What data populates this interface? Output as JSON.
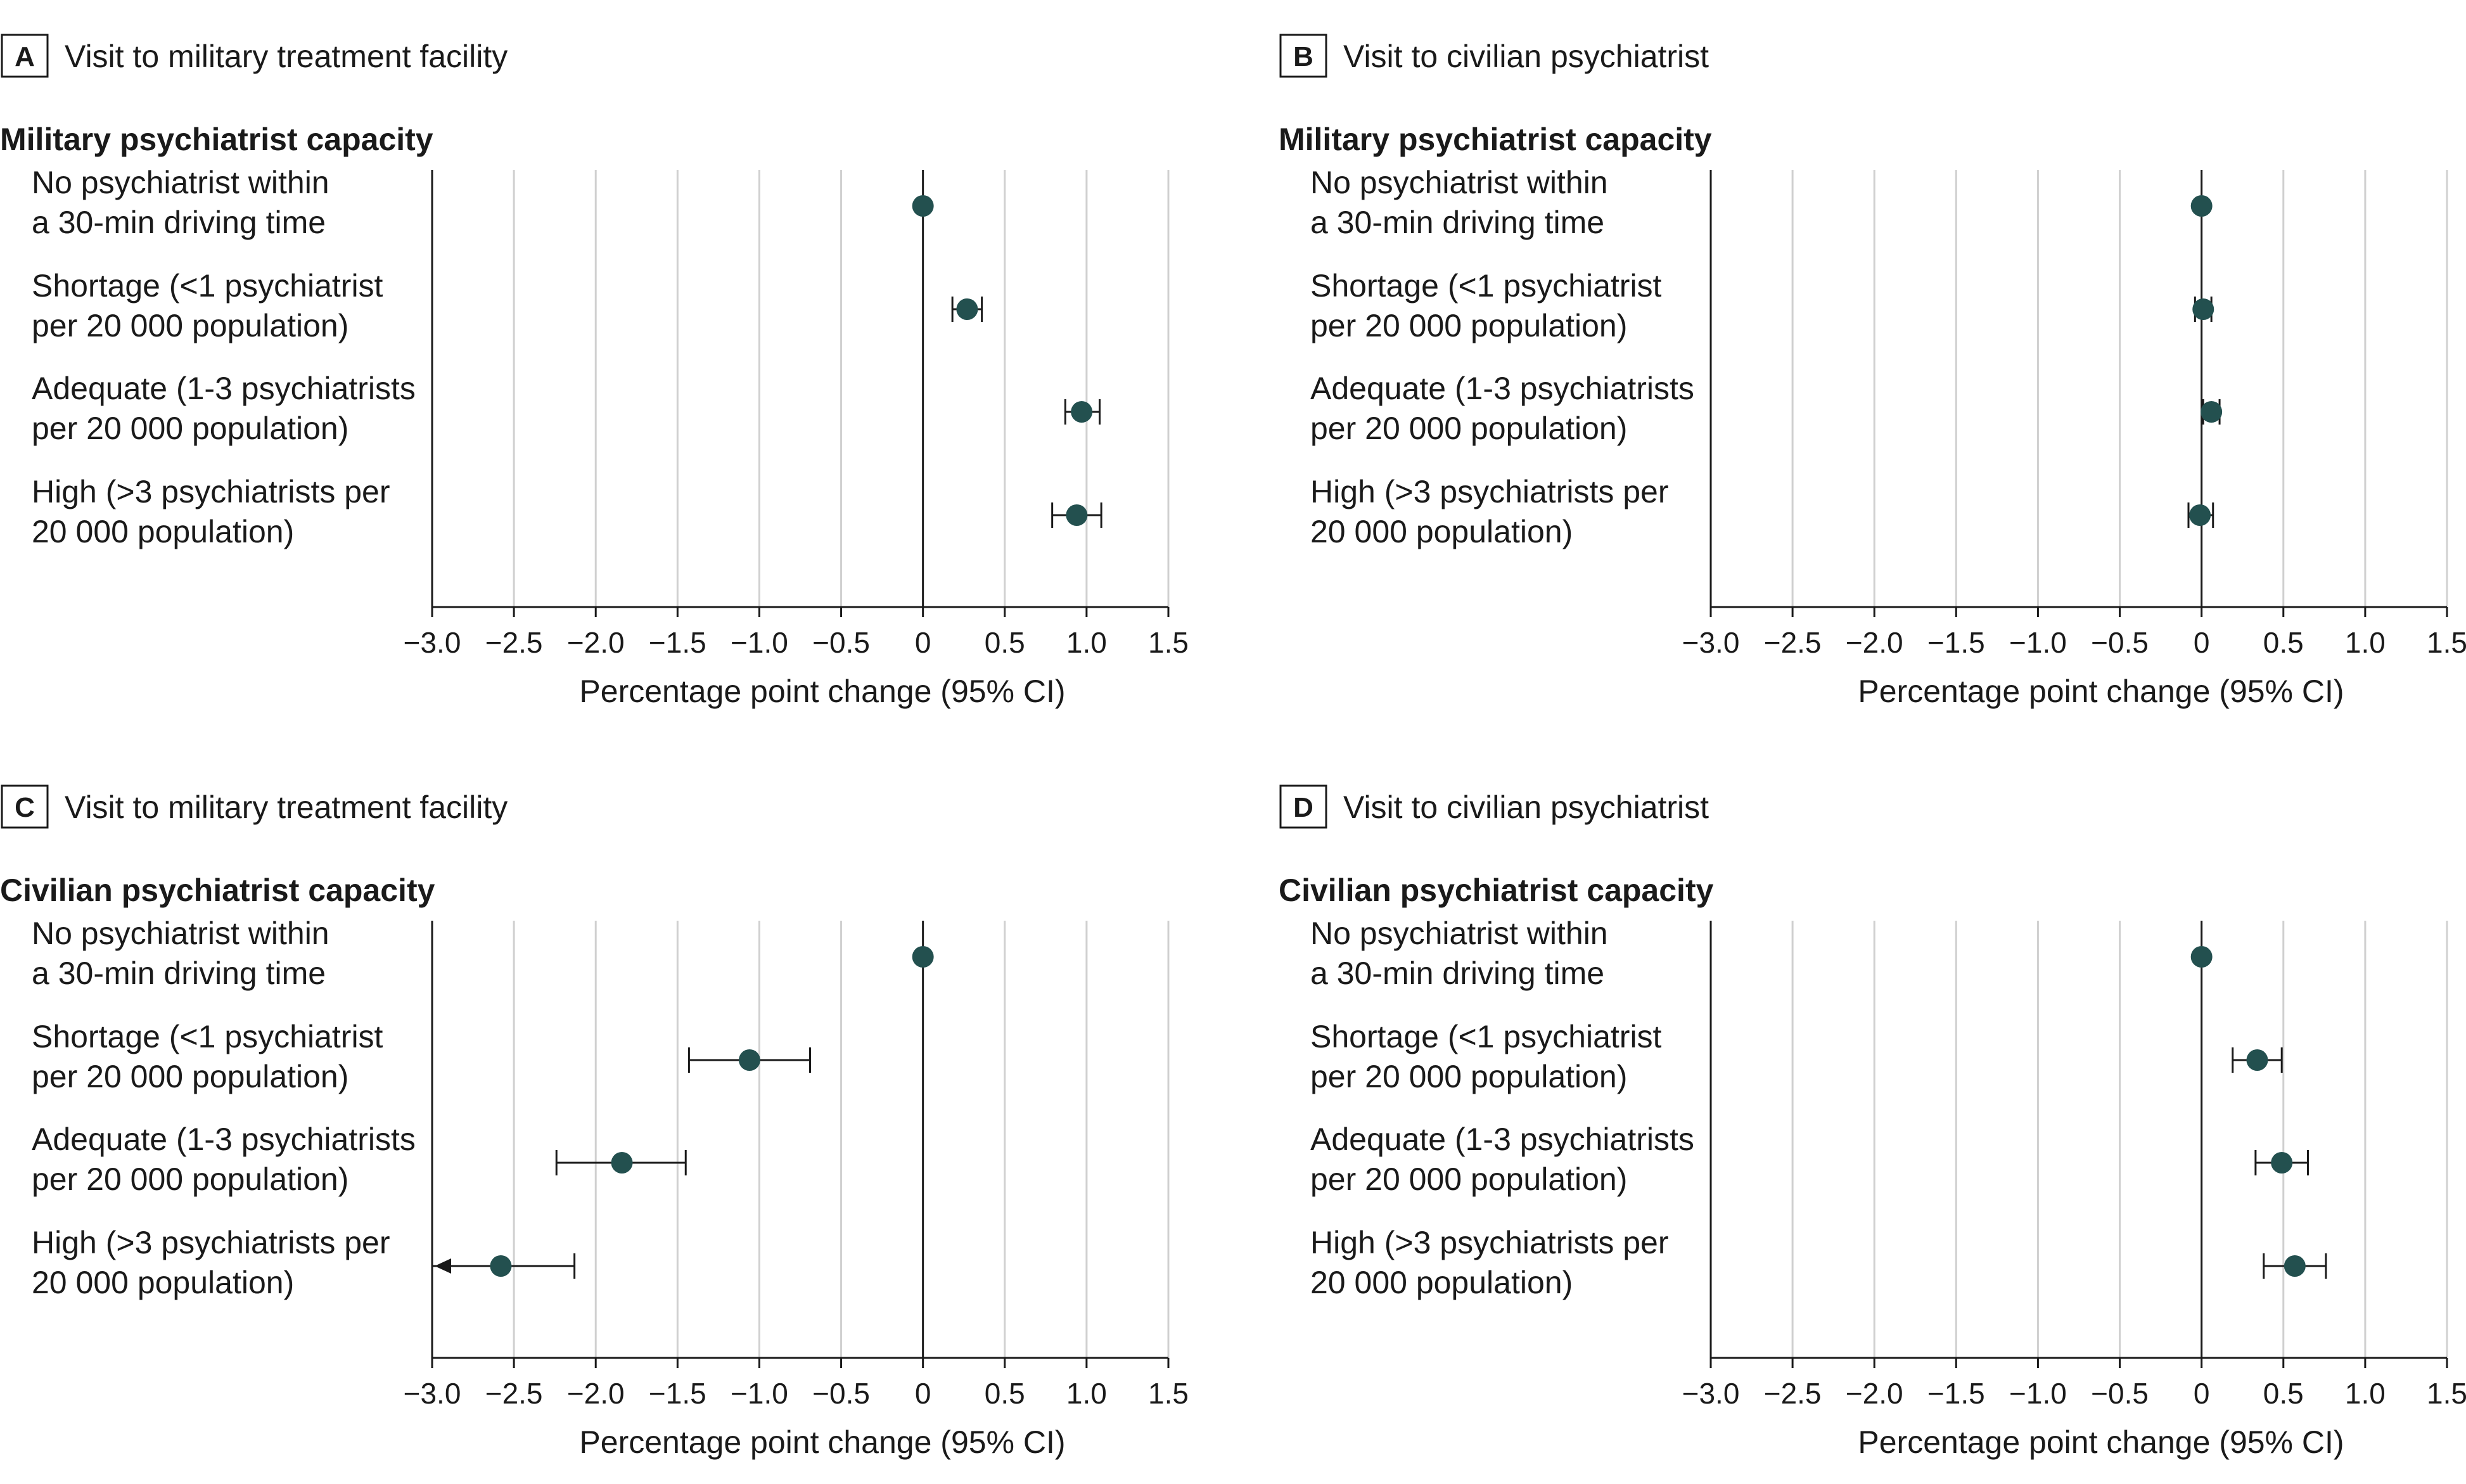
{
  "chart_data": [
    {
      "type": "forest",
      "panel": "A",
      "title": "Visit to military treatment facility",
      "group_label": "Military psychiatrist capacity",
      "xlabel": "Percentage point change (95% CI)",
      "xlim": [
        -3.0,
        1.5
      ],
      "ticks": [
        -3.0,
        -2.5,
        -2.0,
        -1.5,
        -1.0,
        -0.5,
        0,
        0.5,
        1.0,
        1.5
      ],
      "tick_labels": [
        "−3.0",
        "−2.5",
        "−2.0",
        "−1.5",
        "−1.0",
        "−0.5",
        "0",
        "0.5",
        "1.0",
        "1.5"
      ],
      "rows": [
        {
          "label": [
            "No psychiatrist within",
            "a 30-min driving time"
          ],
          "estimate": 0,
          "ci": null
        },
        {
          "label": [
            "Shortage (<1 psychiatrist",
            "per 20 000 population)"
          ],
          "estimate": 0.27,
          "ci": [
            0.18,
            0.36
          ]
        },
        {
          "label": [
            "Adequate (1-3 psychiatrists",
            "per 20 000 population)"
          ],
          "estimate": 0.97,
          "ci": [
            0.87,
            1.08
          ]
        },
        {
          "label": [
            "High (>3 psychiatrists per",
            "20 000 population)"
          ],
          "estimate": 0.94,
          "ci": [
            0.79,
            1.09
          ]
        }
      ]
    },
    {
      "type": "forest",
      "panel": "B",
      "title": "Visit to civilian psychiatrist",
      "group_label": "Military psychiatrist capacity",
      "xlabel": "Percentage point change (95% CI)",
      "xlim": [
        -3.0,
        1.5
      ],
      "ticks": [
        -3.0,
        -2.5,
        -2.0,
        -1.5,
        -1.0,
        -0.5,
        0,
        0.5,
        1.0,
        1.5
      ],
      "tick_labels": [
        "−3.0",
        "−2.5",
        "−2.0",
        "−1.5",
        "−1.0",
        "−0.5",
        "0",
        "0.5",
        "1.0",
        "1.5"
      ],
      "rows": [
        {
          "label": [
            "No psychiatrist within",
            "a 30-min driving time"
          ],
          "estimate": 0,
          "ci": null
        },
        {
          "label": [
            "Shortage (<1 psychiatrist",
            "per 20 000 population)"
          ],
          "estimate": 0.01,
          "ci": [
            -0.04,
            0.06
          ]
        },
        {
          "label": [
            "Adequate (1-3 psychiatrists",
            "per 20 000 population)"
          ],
          "estimate": 0.06,
          "ci": [
            0.01,
            0.11
          ]
        },
        {
          "label": [
            "High (>3 psychiatrists per",
            "20 000 population)"
          ],
          "estimate": -0.01,
          "ci": [
            -0.08,
            0.07
          ]
        }
      ]
    },
    {
      "type": "forest",
      "panel": "C",
      "title": "Visit to military treatment facility",
      "group_label": "Civilian psychiatrist capacity",
      "xlabel": "Percentage point change (95% CI)",
      "xlim": [
        -3.0,
        1.5
      ],
      "ticks": [
        -3.0,
        -2.5,
        -2.0,
        -1.5,
        -1.0,
        -0.5,
        0,
        0.5,
        1.0,
        1.5
      ],
      "tick_labels": [
        "−3.0",
        "−2.5",
        "−2.0",
        "−1.5",
        "−1.0",
        "−0.5",
        "0",
        "0.5",
        "1.0",
        "1.5"
      ],
      "rows": [
        {
          "label": [
            "No psychiatrist within",
            "a 30-min driving time"
          ],
          "estimate": 0,
          "ci": null
        },
        {
          "label": [
            "Shortage (<1 psychiatrist",
            "per 20 000 population)"
          ],
          "estimate": -1.06,
          "ci": [
            -1.43,
            -0.69
          ]
        },
        {
          "label": [
            "Adequate (1-3 psychiatrists",
            "per 20 000 population)"
          ],
          "estimate": -1.84,
          "ci": [
            -2.24,
            -1.45
          ]
        },
        {
          "label": [
            "High (>3 psychiatrists per",
            "20 000 population)"
          ],
          "estimate": -2.58,
          "ci": [
            -3.1,
            -2.13
          ],
          "arrow_left": true
        }
      ]
    },
    {
      "type": "forest",
      "panel": "D",
      "title": "Visit to civilian psychiatrist",
      "group_label": "Civilian psychiatrist capacity",
      "xlabel": "Percentage point change (95% CI)",
      "xlim": [
        -3.0,
        1.5
      ],
      "ticks": [
        -3.0,
        -2.5,
        -2.0,
        -1.5,
        -1.0,
        -0.5,
        0,
        0.5,
        1.0,
        1.5
      ],
      "tick_labels": [
        "−3.0",
        "−2.5",
        "−2.0",
        "−1.5",
        "−1.0",
        "−0.5",
        "0",
        "0.5",
        "1.0",
        "1.5"
      ],
      "rows": [
        {
          "label": [
            "No psychiatrist within",
            "a 30-min driving time"
          ],
          "estimate": 0,
          "ci": null
        },
        {
          "label": [
            "Shortage (<1 psychiatrist",
            "per 20 000 population)"
          ],
          "estimate": 0.34,
          "ci": [
            0.19,
            0.49
          ]
        },
        {
          "label": [
            "Adequate (1-3 psychiatrists",
            "per 20 000 population)"
          ],
          "estimate": 0.49,
          "ci": [
            0.33,
            0.65
          ]
        },
        {
          "label": [
            "High (>3 psychiatrists per",
            "20 000 population)"
          ],
          "estimate": 0.57,
          "ci": [
            0.38,
            0.76
          ]
        }
      ]
    }
  ],
  "colors": {
    "marker": "#23504f",
    "axis": "#1a1a1a",
    "grid": "#d0d0d0",
    "text": "#1a1a1a"
  }
}
